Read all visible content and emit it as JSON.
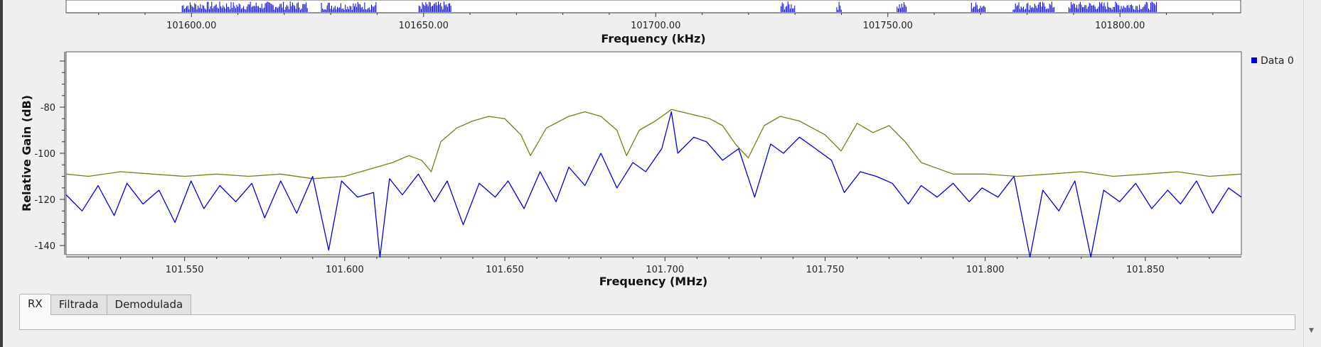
{
  "top_axis": {
    "xlabel": "Frequency (kHz)",
    "ticks": [
      101600.0,
      101650.0,
      101700.0,
      101750.0,
      101800.0
    ],
    "tick_labels": [
      "101600.00",
      "101650.00",
      "101700.00",
      "101750.00",
      "101800.00"
    ],
    "visible_range": [
      101573,
      101826
    ],
    "spike_bands": [
      [
        101598,
        101625
      ],
      [
        101628,
        101640
      ],
      [
        101649,
        101656
      ],
      [
        101727,
        101730
      ],
      [
        101739,
        101740
      ],
      [
        101752,
        101754
      ],
      [
        101768,
        101771
      ],
      [
        101777,
        101786
      ],
      [
        101789,
        101808
      ]
    ]
  },
  "chart_data": {
    "type": "line",
    "xlabel": "Frequency (MHz)",
    "ylabel": "Relative Gain (dB)",
    "xlim": [
      101.513,
      101.88
    ],
    "ylim": [
      -144,
      -56
    ],
    "x_ticks": [
      101.55,
      101.6,
      101.65,
      101.7,
      101.75,
      101.8,
      101.85
    ],
    "x_tick_labels": [
      "101.550",
      "101.600",
      "101.650",
      "101.700",
      "101.750",
      "101.800",
      "101.850"
    ],
    "y_ticks": [
      -80,
      -100,
      -120,
      -140
    ],
    "y_tick_labels": [
      "-80",
      "-100",
      "-120",
      "-140"
    ],
    "legend": {
      "entries": [
        "Data 0"
      ],
      "placement": "top-right outside"
    },
    "grid": false,
    "colors": {
      "blue": "#0000dd",
      "olive": "#7d7d14"
    },
    "series": [
      {
        "name": "Data 0",
        "color": "#0000dd",
        "x": [
          101.513,
          101.518,
          101.523,
          101.528,
          101.532,
          101.537,
          101.542,
          101.547,
          101.552,
          101.556,
          101.561,
          101.566,
          101.571,
          101.575,
          101.58,
          101.585,
          101.59,
          101.595,
          101.599,
          101.604,
          101.609,
          101.611,
          101.614,
          101.618,
          101.623,
          101.628,
          101.632,
          101.637,
          101.642,
          101.647,
          101.651,
          101.656,
          101.661,
          101.666,
          101.67,
          101.675,
          101.68,
          101.685,
          101.69,
          101.694,
          101.699,
          101.702,
          101.704,
          101.709,
          101.713,
          101.718,
          101.723,
          101.728,
          101.733,
          101.737,
          101.742,
          101.747,
          101.752,
          101.756,
          101.761,
          101.766,
          101.771,
          101.776,
          101.78,
          101.785,
          101.79,
          101.795,
          101.799,
          101.804,
          101.809,
          101.814,
          101.818,
          101.823,
          101.828,
          101.833,
          101.837,
          101.842,
          101.847,
          101.852,
          101.857,
          101.861,
          101.866,
          101.871,
          101.876,
          101.88
        ],
        "y": [
          -118,
          -125,
          -114,
          -127,
          -113,
          -122,
          -116,
          -130,
          -112,
          -124,
          -114,
          -121,
          -113,
          -128,
          -112,
          -126,
          -110,
          -142,
          -112,
          -119,
          -117,
          -145,
          -111,
          -118,
          -109,
          -121,
          -112,
          -131,
          -113,
          -119,
          -112,
          -124,
          -108,
          -121,
          -106,
          -114,
          -100,
          -115,
          -104,
          -108,
          -98,
          -82,
          -100,
          -93,
          -95,
          -103,
          -98,
          -119,
          -96,
          -100,
          -93,
          -98,
          -103,
          -117,
          -108,
          -110,
          -113,
          -122,
          -114,
          -119,
          -113,
          -121,
          -115,
          -119,
          -110,
          -145,
          -116,
          -125,
          -112,
          -145,
          -116,
          -121,
          -113,
          -124,
          -116,
          -122,
          -112,
          -126,
          -115,
          -119
        ]
      },
      {
        "color": "#7d7d14",
        "x": [
          101.513,
          101.52,
          101.53,
          101.54,
          101.55,
          101.56,
          101.57,
          101.58,
          101.59,
          101.6,
          101.605,
          101.61,
          101.615,
          101.62,
          101.624,
          101.627,
          101.63,
          101.635,
          101.64,
          101.645,
          101.65,
          101.655,
          101.658,
          101.663,
          101.67,
          101.675,
          101.68,
          101.685,
          101.688,
          101.692,
          101.697,
          101.702,
          101.708,
          101.714,
          101.718,
          101.722,
          101.726,
          101.731,
          101.736,
          101.742,
          101.746,
          101.75,
          101.755,
          101.76,
          101.765,
          101.77,
          101.775,
          101.78,
          101.79,
          101.8,
          101.81,
          101.82,
          101.83,
          101.84,
          101.85,
          101.86,
          101.87,
          101.88
        ],
        "y": [
          -109,
          -110,
          -108,
          -109,
          -110,
          -109,
          -110,
          -109,
          -111,
          -110,
          -108,
          -106,
          -104,
          -101,
          -103,
          -108,
          -95,
          -89,
          -86,
          -84,
          -85,
          -92,
          -101,
          -89,
          -84,
          -82,
          -84,
          -90,
          -101,
          -90,
          -86,
          -81,
          -83,
          -85,
          -88,
          -96,
          -102,
          -88,
          -84,
          -86,
          -89,
          -92,
          -99,
          -87,
          -91,
          -88,
          -95,
          -104,
          -109,
          -109,
          -110,
          -109,
          -108,
          -110,
          -109,
          -108,
          -110,
          -109
        ]
      }
    ]
  },
  "tabs": [
    {
      "label": "RX",
      "active": true
    },
    {
      "label": "Filtrada",
      "active": false
    },
    {
      "label": "Demodulada",
      "active": false
    }
  ]
}
